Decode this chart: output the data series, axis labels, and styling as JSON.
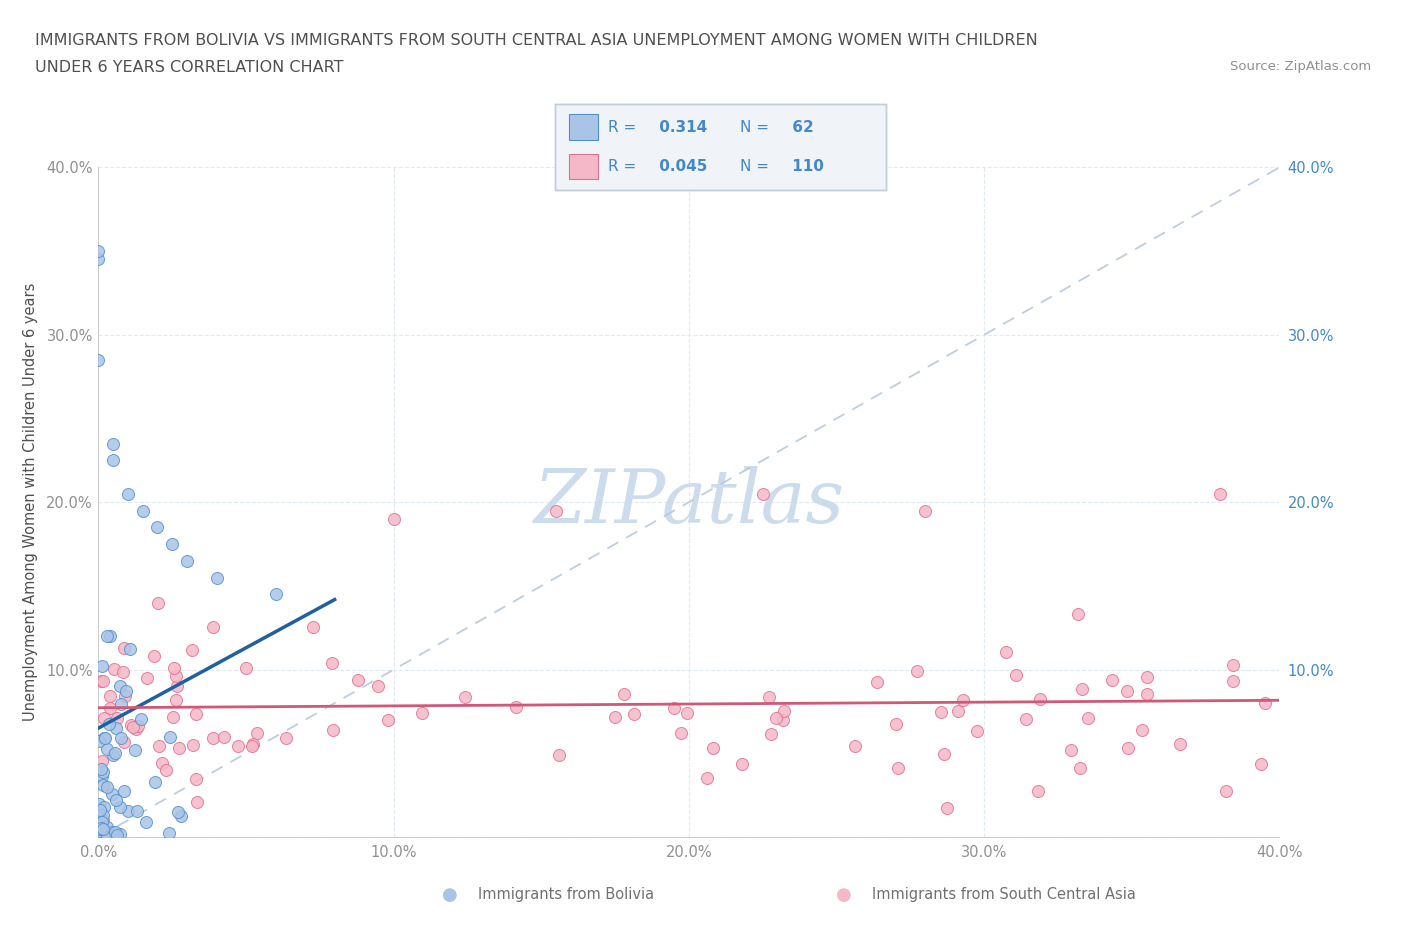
{
  "title_line1": "IMMIGRANTS FROM BOLIVIA VS IMMIGRANTS FROM SOUTH CENTRAL ASIA UNEMPLOYMENT AMONG WOMEN WITH CHILDREN",
  "title_line2": "UNDER 6 YEARS CORRELATION CHART",
  "source_text": "Source: ZipAtlas.com",
  "ylabel": "Unemployment Among Women with Children Under 6 years",
  "xlim": [
    0.0,
    0.4
  ],
  "ylim": [
    0.0,
    0.4
  ],
  "xticks": [
    0.0,
    0.1,
    0.2,
    0.3,
    0.4
  ],
  "yticks": [
    0.0,
    0.1,
    0.2,
    0.3,
    0.4
  ],
  "bolivia_color": "#aac4e8",
  "bolivia_edge_color": "#5090cc",
  "sca_color": "#f5b8c8",
  "sca_edge_color": "#e07090",
  "bolivia_R": 0.314,
  "bolivia_N": 62,
  "sca_R": 0.045,
  "sca_N": 110,
  "bolivia_line_color": "#2060a0",
  "sca_line_color": "#d05878",
  "dashed_line_color": "#b8c8d8",
  "watermark_color": "#ccdcec",
  "background_color": "#ffffff",
  "grid_color": "#dde8f0",
  "legend_text_color": "#4488cc",
  "right_tick_color": "#4488cc",
  "title_color": "#505050",
  "tick_color": "#909090",
  "legend_box_color": "#f0f4f8",
  "legend_box_edge": "#c0ccd8"
}
